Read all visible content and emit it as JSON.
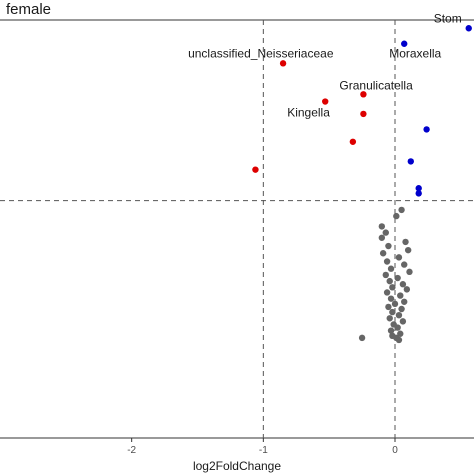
{
  "chart_data": {
    "type": "scatter",
    "panel_title": "female",
    "xlabel": "log2FoldChange",
    "ylabel": "",
    "xlim": [
      -3.0,
      0.6
    ],
    "ylim": [
      -1.0,
      3.05
    ],
    "x_ticks": [
      -2,
      -1,
      0
    ],
    "tick_labels": [
      "-2",
      "-1",
      "0"
    ],
    "vlines": [
      -1,
      0
    ],
    "hline": 1.3,
    "grid": false,
    "colors": {
      "enriched": "#0000cc",
      "depleted": "#dd0000",
      "not_significant": "#666666",
      "reference_line": "#555555",
      "axis": "#333333"
    },
    "series": [
      {
        "group": "enriched",
        "points": [
          {
            "x": 0.56,
            "y": 2.97,
            "label": "Stom"
          },
          {
            "x": 0.07,
            "y": 2.82,
            "label": "Moraxella"
          },
          {
            "x": 0.24,
            "y": 1.99
          },
          {
            "x": 0.12,
            "y": 1.68
          },
          {
            "x": 0.18,
            "y": 1.42
          },
          {
            "x": 0.18,
            "y": 1.37
          }
        ]
      },
      {
        "group": "depleted",
        "points": [
          {
            "x": -0.85,
            "y": 2.63,
            "label": "unclassified_Neisseriaceae"
          },
          {
            "x": -0.24,
            "y": 2.33,
            "label": "Granulicatella"
          },
          {
            "x": -0.53,
            "y": 2.26,
            "label": "Kingella"
          },
          {
            "x": -0.24,
            "y": 2.14
          },
          {
            "x": -0.32,
            "y": 1.87
          },
          {
            "x": -1.06,
            "y": 1.6
          }
        ]
      },
      {
        "group": "not_significant",
        "points": [
          {
            "x": 0.05,
            "y": 1.21
          },
          {
            "x": 0.01,
            "y": 1.15
          },
          {
            "x": -0.1,
            "y": 1.05
          },
          {
            "x": -0.07,
            "y": 0.99
          },
          {
            "x": -0.1,
            "y": 0.94
          },
          {
            "x": 0.08,
            "y": 0.9
          },
          {
            "x": -0.05,
            "y": 0.86
          },
          {
            "x": 0.1,
            "y": 0.82
          },
          {
            "x": -0.09,
            "y": 0.79
          },
          {
            "x": 0.03,
            "y": 0.75
          },
          {
            "x": -0.06,
            "y": 0.71
          },
          {
            "x": 0.07,
            "y": 0.68
          },
          {
            "x": -0.03,
            "y": 0.64
          },
          {
            "x": 0.11,
            "y": 0.61
          },
          {
            "x": -0.07,
            "y": 0.58
          },
          {
            "x": 0.02,
            "y": 0.55
          },
          {
            "x": -0.04,
            "y": 0.52
          },
          {
            "x": 0.06,
            "y": 0.49
          },
          {
            "x": -0.02,
            "y": 0.46
          },
          {
            "x": 0.09,
            "y": 0.44
          },
          {
            "x": -0.06,
            "y": 0.41
          },
          {
            "x": 0.04,
            "y": 0.38
          },
          {
            "x": -0.03,
            "y": 0.35
          },
          {
            "x": 0.07,
            "y": 0.32
          },
          {
            "x": 0.0,
            "y": 0.3
          },
          {
            "x": -0.05,
            "y": 0.27
          },
          {
            "x": 0.05,
            "y": 0.25
          },
          {
            "x": -0.02,
            "y": 0.22
          },
          {
            "x": 0.03,
            "y": 0.19
          },
          {
            "x": -0.04,
            "y": 0.16
          },
          {
            "x": 0.06,
            "y": 0.13
          },
          {
            "x": -0.01,
            "y": 0.1
          },
          {
            "x": 0.02,
            "y": 0.07
          },
          {
            "x": -0.03,
            "y": 0.04
          },
          {
            "x": 0.04,
            "y": 0.01
          },
          {
            "x": -0.02,
            "y": -0.01
          },
          {
            "x": 0.01,
            "y": -0.03
          },
          {
            "x": -0.25,
            "y": -0.03
          },
          {
            "x": 0.03,
            "y": -0.05
          }
        ]
      }
    ]
  }
}
